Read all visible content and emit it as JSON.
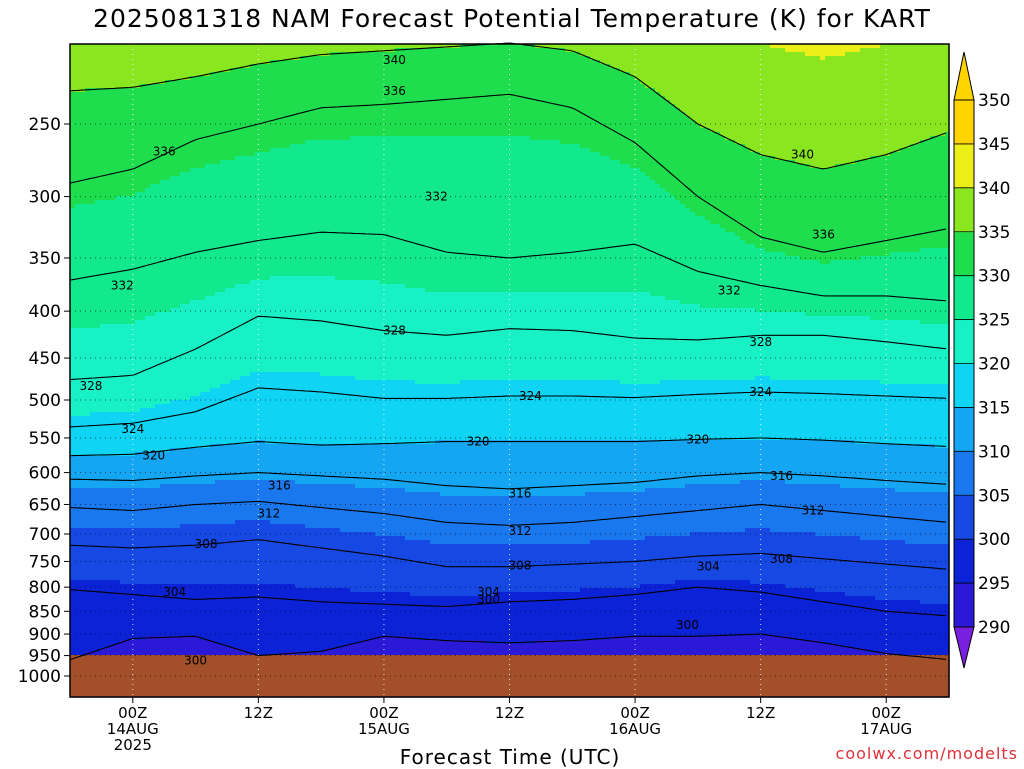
{
  "title": "2025081318 NAM Forecast Potential Temperature (K) for KART",
  "chart_data": {
    "type": "heatmap",
    "title": "2025081318 NAM Forecast Potential Temperature (K) for KART",
    "xlabel": "Forecast Time (UTC)",
    "ylabel": "",
    "y_axis": {
      "scale": "log",
      "ticks": [
        250,
        300,
        350,
        400,
        450,
        500,
        550,
        600,
        650,
        700,
        750,
        800,
        850,
        900,
        950,
        1000
      ],
      "tick_labels": [
        "250",
        "300",
        "350",
        "400",
        "450",
        "500",
        "550",
        "600",
        "650",
        "700",
        "750",
        "800",
        "850",
        "900",
        "950",
        "1000"
      ]
    },
    "x_axis": {
      "ticks": [
        {
          "hour": 6,
          "lines": [
            "00Z",
            "14AUG",
            "2025"
          ]
        },
        {
          "hour": 18,
          "lines": [
            "12Z"
          ]
        },
        {
          "hour": 30,
          "lines": [
            "00Z",
            "15AUG"
          ]
        },
        {
          "hour": 42,
          "lines": [
            "12Z"
          ]
        },
        {
          "hour": 54,
          "lines": [
            "00Z",
            "16AUG"
          ]
        },
        {
          "hour": 66,
          "lines": [
            "12Z"
          ]
        },
        {
          "hour": 78,
          "lines": [
            "00Z",
            "17AUG"
          ]
        }
      ]
    },
    "grid": true,
    "colorbar": {
      "levels": [
        290,
        295,
        300,
        305,
        310,
        315,
        320,
        325,
        330,
        335,
        340,
        345,
        350
      ],
      "colors": [
        "#7a1ee0",
        "#2a1ad8",
        "#0c22d6",
        "#1648e4",
        "#1a78ee",
        "#14a6f2",
        "#10d4f4",
        "#18f0c6",
        "#12e88c",
        "#1ede4e",
        "#8ae61e",
        "#ecee18",
        "#ffd400"
      ]
    },
    "x_hours": [
      0,
      6,
      12,
      18,
      24,
      30,
      36,
      42,
      48,
      54,
      60,
      66,
      72,
      78,
      84
    ],
    "isentropes": [
      {
        "theta": 300,
        "p": [
          960,
          910,
          905,
          950,
          940,
          905,
          915,
          920,
          915,
          905,
          905,
          900,
          920,
          945,
          960
        ]
      },
      {
        "theta": 304,
        "p": [
          805,
          815,
          825,
          820,
          830,
          835,
          840,
          830,
          825,
          815,
          800,
          810,
          830,
          850,
          860
        ]
      },
      {
        "theta": 308,
        "p": [
          720,
          725,
          720,
          710,
          725,
          740,
          760,
          760,
          755,
          750,
          740,
          735,
          745,
          755,
          765
        ]
      },
      {
        "theta": 312,
        "p": [
          655,
          660,
          650,
          645,
          655,
          665,
          680,
          685,
          680,
          670,
          660,
          650,
          660,
          670,
          680
        ]
      },
      {
        "theta": 316,
        "p": [
          610,
          612,
          605,
          600,
          605,
          610,
          620,
          625,
          620,
          615,
          605,
          600,
          605,
          612,
          618
        ]
      },
      {
        "theta": 320,
        "p": [
          575,
          573,
          563,
          555,
          560,
          558,
          555,
          555,
          555,
          555,
          552,
          550,
          553,
          558,
          562
        ]
      },
      {
        "theta": 324,
        "p": [
          535,
          530,
          515,
          485,
          490,
          498,
          498,
          495,
          495,
          497,
          493,
          490,
          492,
          495,
          498
        ]
      },
      {
        "theta": 328,
        "p": [
          475,
          470,
          440,
          405,
          410,
          420,
          425,
          418,
          420,
          428,
          430,
          425,
          425,
          432,
          440
        ]
      },
      {
        "theta": 332,
        "p": [
          370,
          360,
          345,
          335,
          328,
          330,
          345,
          350,
          345,
          338,
          362,
          375,
          385,
          385,
          390
        ]
      },
      {
        "theta": 336,
        "p": [
          290,
          280,
          260,
          250,
          240,
          238,
          235,
          232,
          240,
          262,
          300,
          332,
          345,
          335,
          325
        ]
      },
      {
        "theta": 340,
        "p": [
          230,
          228,
          222,
          215,
          210,
          208,
          206,
          204,
          208,
          222,
          250,
          270,
          280,
          270,
          255
        ]
      }
    ],
    "contour_labels": [
      {
        "theta": 340,
        "hour": 31,
        "p": 213
      },
      {
        "theta": 336,
        "hour": 31,
        "p": 230
      },
      {
        "theta": 336,
        "hour": 9,
        "p": 268
      },
      {
        "theta": 340,
        "hour": 70,
        "p": 270
      },
      {
        "theta": 332,
        "hour": 35,
        "p": 300
      },
      {
        "theta": 336,
        "hour": 72,
        "p": 330
      },
      {
        "theta": 332,
        "hour": 5,
        "p": 375
      },
      {
        "theta": 332,
        "hour": 63,
        "p": 380
      },
      {
        "theta": 328,
        "hour": 31,
        "p": 420
      },
      {
        "theta": 328,
        "hour": 66,
        "p": 432
      },
      {
        "theta": 328,
        "hour": 2,
        "p": 483
      },
      {
        "theta": 324,
        "hour": 44,
        "p": 495
      },
      {
        "theta": 324,
        "hour": 66,
        "p": 490
      },
      {
        "theta": 324,
        "hour": 6,
        "p": 538
      },
      {
        "theta": 320,
        "hour": 39,
        "p": 555
      },
      {
        "theta": 320,
        "hour": 60,
        "p": 552
      },
      {
        "theta": 320,
        "hour": 8,
        "p": 575
      },
      {
        "theta": 316,
        "hour": 20,
        "p": 620
      },
      {
        "theta": 316,
        "hour": 43,
        "p": 632
      },
      {
        "theta": 316,
        "hour": 68,
        "p": 605
      },
      {
        "theta": 312,
        "hour": 19,
        "p": 665
      },
      {
        "theta": 312,
        "hour": 43,
        "p": 695
      },
      {
        "theta": 312,
        "hour": 71,
        "p": 660
      },
      {
        "theta": 308,
        "hour": 13,
        "p": 718
      },
      {
        "theta": 308,
        "hour": 43,
        "p": 758
      },
      {
        "theta": 308,
        "hour": 68,
        "p": 745
      },
      {
        "theta": 304,
        "hour": 61,
        "p": 760
      },
      {
        "theta": 304,
        "hour": 10,
        "p": 810
      },
      {
        "theta": 304,
        "hour": 40,
        "p": 810
      },
      {
        "theta": 300,
        "hour": 40,
        "p": 825
      },
      {
        "theta": 300,
        "hour": 59,
        "p": 880
      },
      {
        "theta": 300,
        "hour": 12,
        "p": 962
      }
    ],
    "terrain_below_hpa": 985
  },
  "xlabel": "Forecast Time (UTC)",
  "credit": "coolwx.com/modelts"
}
